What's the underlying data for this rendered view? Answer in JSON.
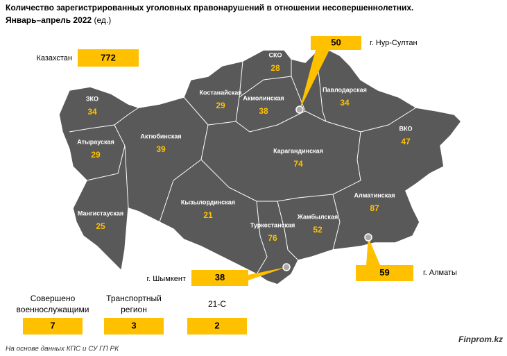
{
  "header": {
    "title": "Количество зарегистрированных уголовных правонарушений в отношении несовершеннолетних.",
    "period": "Январь–апрель 2022",
    "unit": "(ед.)"
  },
  "total": {
    "label": "Казахстан",
    "value": 772
  },
  "regions": [
    {
      "name": "ЗКО",
      "value": 34
    },
    {
      "name": "Атырауская",
      "value": 29
    },
    {
      "name": "Актюбинская",
      "value": 39
    },
    {
      "name": "Мангистауская",
      "value": 25
    },
    {
      "name": "Костанайская",
      "value": 29
    },
    {
      "name": "СКО",
      "value": 28
    },
    {
      "name": "Акмолинская",
      "value": 38
    },
    {
      "name": "Павлодарская",
      "value": 34
    },
    {
      "name": "ВКО",
      "value": 47
    },
    {
      "name": "Карагандинская",
      "value": 74
    },
    {
      "name": "Кызылординская",
      "value": 21
    },
    {
      "name": "Алматинская",
      "value": 87
    },
    {
      "name": "Жамбылская",
      "value": 52
    },
    {
      "name": "Туркестанская",
      "value": 76
    }
  ],
  "cities": [
    {
      "name": "г. Нур-Султан",
      "value": 50
    },
    {
      "name": "г. Алматы",
      "value": 59
    },
    {
      "name": "г. Шымкент",
      "value": 38
    }
  ],
  "other": [
    {
      "label": "Совершено военнослужащими",
      "value": 7
    },
    {
      "label": "Транспортный регион",
      "value": 3
    },
    {
      "label": "21-С",
      "value": 2
    }
  ],
  "source": "На основе данных КПС и СУ ГП РК",
  "brand": "Finprom.kz"
}
